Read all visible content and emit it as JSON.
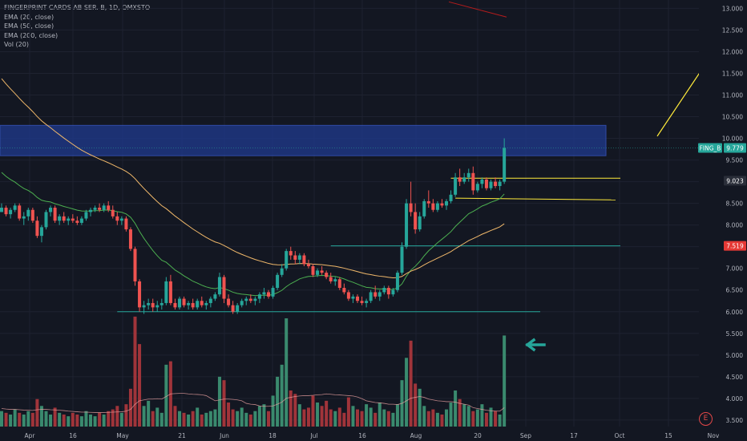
{
  "legend": {
    "title": "FINGERPRINT CARDS AB SER. B, 1D, OMXSTO",
    "studies": [
      "EMA (20, close)",
      "EMA (50, close)",
      "EMA (200, close)",
      "Vol (20)"
    ]
  },
  "colors": {
    "background": "#131722",
    "up": "#26a69a",
    "down": "#ef5350",
    "vol_up": "#3a8a6e",
    "vol_down": "#a0343a",
    "ema20": "#4caf50",
    "ema50": "#f0b86a",
    "ema200": "#e57373",
    "volma": "#e8a0a0",
    "zone": "#1f3a8f",
    "drawing_green": "#26a69a",
    "drawing_yellow": "#ffeb3b"
  },
  "icons": {
    "arrow": "left-arrow-icon",
    "logo": "e-logo-icon"
  },
  "logo_letter": "E",
  "price_tags": {
    "symbol": "FING_B",
    "last": "9.779",
    "mid": "9.023",
    "red": "7.519"
  },
  "chart_data": {
    "type": "candlestick",
    "x_tick_labels": [
      "Apr",
      "16",
      "May",
      "21",
      "Jun",
      "18",
      "Jul",
      "16",
      "Aug",
      "20",
      "Sep",
      "17",
      "Oct",
      "15",
      "Nov"
    ],
    "y_tick_labels": [
      "3.500",
      "4.000",
      "4.500",
      "5.000",
      "5.500",
      "6.000",
      "6.500",
      "7.000",
      "7.500",
      "8.000",
      "8.500",
      "9.000",
      "9.500",
      "10.000",
      "10.500",
      "11.000",
      "11.500",
      "12.000",
      "12.500",
      "13.000"
    ],
    "ylim": [
      3.35,
      13.1
    ],
    "ohlc": [
      [
        8.3,
        8.5,
        8.3,
        8.4
      ],
      [
        8.4,
        8.45,
        8.2,
        8.25
      ],
      [
        8.25,
        8.4,
        8.15,
        8.35
      ],
      [
        8.35,
        8.5,
        8.3,
        8.45
      ],
      [
        8.45,
        8.5,
        8.1,
        8.15
      ],
      [
        8.15,
        8.3,
        8.0,
        8.2
      ],
      [
        8.2,
        8.4,
        8.1,
        8.35
      ],
      [
        8.35,
        8.4,
        8.05,
        8.1
      ],
      [
        8.1,
        8.2,
        7.7,
        7.75
      ],
      [
        7.75,
        8.0,
        7.6,
        7.95
      ],
      [
        7.95,
        8.35,
        7.9,
        8.3
      ],
      [
        8.3,
        8.45,
        8.2,
        8.4
      ],
      [
        8.4,
        8.45,
        8.05,
        8.1
      ],
      [
        8.1,
        8.25,
        8.0,
        8.2
      ],
      [
        8.2,
        8.3,
        8.05,
        8.1
      ],
      [
        8.1,
        8.2,
        8.0,
        8.15
      ],
      [
        8.15,
        8.25,
        8.05,
        8.1
      ],
      [
        8.1,
        8.2,
        8.0,
        8.05
      ],
      [
        8.05,
        8.2,
        8.0,
        8.15
      ],
      [
        8.15,
        8.35,
        8.1,
        8.3
      ],
      [
        8.3,
        8.4,
        8.2,
        8.35
      ],
      [
        8.35,
        8.45,
        8.3,
        8.4
      ],
      [
        8.4,
        8.5,
        8.3,
        8.35
      ],
      [
        8.35,
        8.5,
        8.3,
        8.45
      ],
      [
        8.45,
        8.55,
        8.3,
        8.35
      ],
      [
        8.35,
        8.45,
        8.15,
        8.2
      ],
      [
        8.2,
        8.3,
        8.0,
        8.1
      ],
      [
        8.1,
        8.2,
        8.0,
        8.15
      ],
      [
        8.15,
        8.2,
        7.85,
        7.9
      ],
      [
        7.9,
        7.95,
        7.4,
        7.45
      ],
      [
        7.45,
        7.5,
        6.6,
        6.7
      ],
      [
        6.7,
        6.75,
        6.0,
        6.1
      ],
      [
        6.1,
        6.25,
        5.95,
        6.15
      ],
      [
        6.15,
        6.3,
        6.05,
        6.2
      ],
      [
        6.2,
        6.3,
        6.0,
        6.1
      ],
      [
        6.1,
        6.25,
        6.0,
        6.15
      ],
      [
        6.15,
        6.3,
        6.05,
        6.2
      ],
      [
        6.2,
        6.8,
        6.15,
        6.7
      ],
      [
        6.7,
        6.85,
        6.15,
        6.2
      ],
      [
        6.2,
        6.3,
        6.05,
        6.1
      ],
      [
        6.1,
        6.35,
        6.05,
        6.3
      ],
      [
        6.3,
        6.35,
        6.1,
        6.15
      ],
      [
        6.15,
        6.25,
        6.05,
        6.2
      ],
      [
        6.2,
        6.3,
        6.05,
        6.1
      ],
      [
        6.1,
        6.3,
        6.05,
        6.25
      ],
      [
        6.25,
        6.35,
        6.1,
        6.15
      ],
      [
        6.15,
        6.25,
        6.05,
        6.2
      ],
      [
        6.2,
        6.35,
        6.1,
        6.3
      ],
      [
        6.3,
        6.45,
        6.25,
        6.4
      ],
      [
        6.4,
        6.9,
        6.35,
        6.8
      ],
      [
        6.8,
        6.85,
        6.2,
        6.3
      ],
      [
        6.3,
        6.4,
        6.1,
        6.15
      ],
      [
        6.15,
        6.25,
        5.95,
        6.0
      ],
      [
        6.0,
        6.2,
        5.95,
        6.15
      ],
      [
        6.15,
        6.3,
        6.1,
        6.25
      ],
      [
        6.25,
        6.35,
        6.15,
        6.3
      ],
      [
        6.3,
        6.4,
        6.2,
        6.25
      ],
      [
        6.25,
        6.35,
        6.15,
        6.3
      ],
      [
        6.3,
        6.45,
        6.2,
        6.4
      ],
      [
        6.4,
        6.55,
        6.3,
        6.45
      ],
      [
        6.45,
        6.5,
        6.3,
        6.35
      ],
      [
        6.35,
        6.6,
        6.3,
        6.55
      ],
      [
        6.55,
        6.9,
        6.5,
        6.85
      ],
      [
        6.85,
        7.1,
        6.8,
        7.0
      ],
      [
        7.0,
        7.45,
        6.95,
        7.4
      ],
      [
        7.4,
        7.5,
        7.2,
        7.3
      ],
      [
        7.3,
        7.4,
        7.1,
        7.2
      ],
      [
        7.2,
        7.35,
        7.1,
        7.3
      ],
      [
        7.3,
        7.35,
        7.05,
        7.1
      ],
      [
        7.1,
        7.2,
        7.0,
        7.05
      ],
      [
        7.05,
        7.1,
        6.8,
        6.85
      ],
      [
        6.85,
        7.0,
        6.8,
        6.95
      ],
      [
        6.95,
        7.05,
        6.85,
        6.9
      ],
      [
        6.9,
        6.95,
        6.75,
        6.8
      ],
      [
        6.8,
        6.9,
        6.65,
        6.7
      ],
      [
        6.7,
        6.8,
        6.6,
        6.75
      ],
      [
        6.75,
        6.8,
        6.5,
        6.55
      ],
      [
        6.55,
        6.65,
        6.4,
        6.45
      ],
      [
        6.45,
        6.5,
        6.25,
        6.3
      ],
      [
        6.3,
        6.4,
        6.2,
        6.35
      ],
      [
        6.35,
        6.4,
        6.2,
        6.25
      ],
      [
        6.25,
        6.35,
        6.15,
        6.2
      ],
      [
        6.2,
        6.3,
        6.1,
        6.25
      ],
      [
        6.25,
        6.5,
        6.2,
        6.45
      ],
      [
        6.45,
        6.6,
        6.3,
        6.35
      ],
      [
        6.35,
        6.5,
        6.25,
        6.45
      ],
      [
        6.45,
        6.6,
        6.4,
        6.55
      ],
      [
        6.55,
        6.6,
        6.3,
        6.4
      ],
      [
        6.4,
        6.55,
        6.35,
        6.5
      ],
      [
        6.5,
        6.95,
        6.45,
        6.9
      ],
      [
        6.9,
        7.6,
        6.85,
        7.5
      ],
      [
        7.5,
        8.6,
        7.45,
        8.5
      ],
      [
        8.5,
        9.0,
        8.2,
        8.3
      ],
      [
        8.3,
        8.5,
        7.8,
        7.9
      ],
      [
        7.9,
        8.3,
        7.85,
        8.2
      ],
      [
        8.2,
        8.6,
        8.15,
        8.55
      ],
      [
        8.55,
        8.8,
        8.4,
        8.5
      ],
      [
        8.5,
        8.6,
        8.3,
        8.35
      ],
      [
        8.35,
        8.55,
        8.3,
        8.5
      ],
      [
        8.5,
        8.6,
        8.4,
        8.45
      ],
      [
        8.45,
        8.6,
        8.35,
        8.55
      ],
      [
        8.55,
        8.8,
        8.5,
        8.7
      ],
      [
        8.7,
        9.2,
        8.65,
        9.1
      ],
      [
        9.1,
        9.3,
        8.9,
        9.0
      ],
      [
        9.0,
        9.2,
        8.95,
        9.1
      ],
      [
        9.1,
        9.3,
        9.0,
        9.2
      ],
      [
        9.2,
        9.35,
        8.7,
        8.8
      ],
      [
        8.8,
        9.0,
        8.75,
        8.95
      ],
      [
        8.95,
        9.1,
        8.85,
        9.05
      ],
      [
        9.05,
        9.1,
        8.8,
        8.85
      ],
      [
        8.85,
        9.05,
        8.8,
        9.0
      ],
      [
        9.0,
        9.1,
        8.85,
        8.9
      ],
      [
        8.9,
        9.05,
        8.8,
        9.0
      ],
      [
        9.0,
        10.0,
        8.95,
        9.78
      ]
    ],
    "volume": [
      0.9,
      0.8,
      0.7,
      1.0,
      0.8,
      0.7,
      0.9,
      0.8,
      1.6,
      1.2,
      0.9,
      0.7,
      1.1,
      0.8,
      0.7,
      0.6,
      0.8,
      0.7,
      0.6,
      0.9,
      0.7,
      0.6,
      0.8,
      0.7,
      0.9,
      1.0,
      1.2,
      0.8,
      1.3,
      2.2,
      6.4,
      4.8,
      1.2,
      1.5,
      0.9,
      1.1,
      0.8,
      3.6,
      3.8,
      1.2,
      0.9,
      0.8,
      0.7,
      0.9,
      1.1,
      0.7,
      0.8,
      0.9,
      1.0,
      2.9,
      2.7,
      1.4,
      1.0,
      0.9,
      1.1,
      0.8,
      0.7,
      0.9,
      1.2,
      1.3,
      0.9,
      1.8,
      2.9,
      3.6,
      6.3,
      2.1,
      1.9,
      1.3,
      1.0,
      1.1,
      1.8,
      1.4,
      1.2,
      1.5,
      1.0,
      0.9,
      1.1,
      0.8,
      1.7,
      1.2,
      1.0,
      0.9,
      1.3,
      1.1,
      0.8,
      1.4,
      1.0,
      0.9,
      0.8,
      1.3,
      2.7,
      4.0,
      5.0,
      2.5,
      2.2,
      1.2,
      0.9,
      1.0,
      0.8,
      0.7,
      1.0,
      1.4,
      2.1,
      1.6,
      1.3,
      1.2,
      0.9,
      1.0,
      1.3,
      0.8,
      1.1,
      0.9,
      0.7,
      5.3
    ],
    "volume_ma": [
      1.05,
      1.02,
      1.0,
      1.0,
      0.98,
      0.96,
      0.95,
      0.94,
      0.98,
      1.0,
      1.0,
      0.98,
      0.97,
      0.95,
      0.93,
      0.9,
      0.88,
      0.86,
      0.84,
      0.84,
      0.83,
      0.82,
      0.82,
      0.82,
      0.83,
      0.84,
      0.85,
      0.86,
      0.9,
      1.0,
      1.3,
      1.5,
      1.55,
      1.6,
      1.6,
      1.62,
      1.6,
      1.75,
      1.9,
      1.92,
      1.93,
      1.93,
      1.9,
      1.88,
      1.87,
      1.85,
      1.8,
      1.65,
      1.5,
      1.55,
      1.6,
      1.6,
      1.58,
      1.55,
      1.5,
      1.35,
      1.3,
      1.28,
      1.2,
      1.18,
      1.18,
      1.2,
      1.3,
      1.42,
      1.65,
      1.7,
      1.75,
      1.78,
      1.8,
      1.8,
      1.82,
      1.85,
      1.86,
      1.9,
      1.88,
      1.85,
      1.84,
      1.82,
      1.8,
      1.78,
      1.72,
      1.62,
      1.5,
      1.45,
      1.4,
      1.38,
      1.35,
      1.3,
      1.3,
      1.28,
      1.35,
      1.5,
      1.65,
      1.7,
      1.75,
      1.7,
      1.6,
      1.55,
      1.5,
      1.48,
      1.45,
      1.45,
      1.42,
      1.35,
      1.3,
      1.25,
      1.1,
      1.05,
      1.0,
      0.95,
      0.92,
      0.9,
      0.9,
      1.1
    ],
    "ema20_label": "EMA (20, close)",
    "ema50_label": "EMA (50, close)",
    "ema200_label": "EMA (200, close)",
    "zone": {
      "y_low": 9.6,
      "y_high": 10.3
    },
    "lines": [
      {
        "color": "green",
        "y": 7.519,
        "x_from_bar": 74,
        "extends": true
      },
      {
        "color": "green",
        "y": 6.02,
        "x_from_bar": 28,
        "extends": false
      },
      {
        "color": "yellow",
        "y": 9.08,
        "x_from_bar": 104,
        "extends": true
      },
      {
        "color": "yellow",
        "y": 8.62,
        "x_from_bar": 106,
        "extends": true
      }
    ]
  }
}
